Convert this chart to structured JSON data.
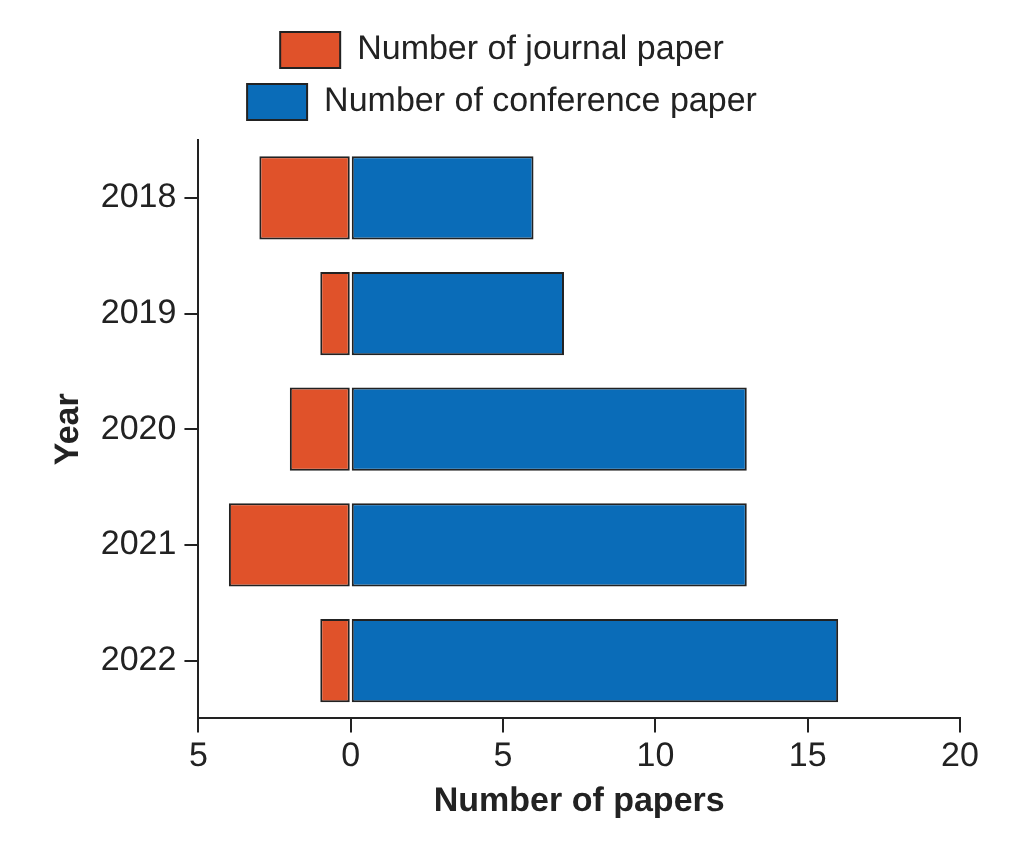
{
  "chart_data": {
    "type": "bar",
    "orientation": "horizontal",
    "stacked": true,
    "xlabel": "Number of papers",
    "ylabel": "Year",
    "categories": [
      "2018",
      "2019",
      "2020",
      "2021",
      "2022"
    ],
    "series": [
      {
        "name": "Number of journal paper",
        "color": "#e0522a",
        "values": [
          -3,
          -1,
          -2,
          -4,
          -1
        ]
      },
      {
        "name": "Number of conference paper",
        "color": "#0a6cb8",
        "values": [
          6,
          7,
          13,
          13,
          16
        ]
      }
    ],
    "xlim": [
      -5,
      20
    ],
    "xticks": [
      {
        "value": -5,
        "label": "5"
      },
      0,
      5,
      10,
      15,
      20
    ],
    "grid": false,
    "legend": "top"
  }
}
